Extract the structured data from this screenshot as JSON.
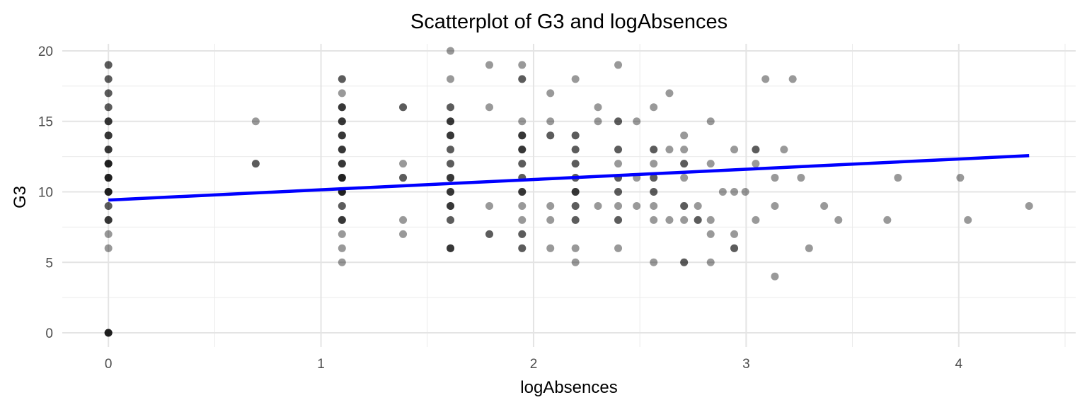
{
  "chart_data": {
    "type": "scatter",
    "title": "Scatterplot of G3 and logAbsences",
    "xlabel": "logAbsences",
    "ylabel": "G3",
    "xlim": [
      -0.217,
      4.55
    ],
    "ylim": [
      -1,
      20.5
    ],
    "x_ticks": [
      0,
      1,
      2,
      3,
      4
    ],
    "y_ticks": [
      0,
      5,
      10,
      15,
      20
    ],
    "x_tick_labels": [
      "0",
      "1",
      "2",
      "3",
      "4"
    ],
    "y_tick_labels": [
      "0",
      "5",
      "10",
      "15",
      "20"
    ],
    "grid": true,
    "point_color": "#000000",
    "point_opacity": 0.4,
    "series": [
      {
        "points": [
          [
            0,
            0
          ],
          [
            0,
            0
          ],
          [
            0,
            0
          ],
          [
            0,
            0
          ],
          [
            0,
            6
          ],
          [
            0,
            7
          ],
          [
            0,
            8
          ],
          [
            0,
            8
          ],
          [
            0,
            8
          ],
          [
            0,
            9
          ],
          [
            0,
            9
          ],
          [
            0,
            10
          ],
          [
            0,
            10
          ],
          [
            0,
            10
          ],
          [
            0,
            10
          ],
          [
            0,
            11
          ],
          [
            0,
            11
          ],
          [
            0,
            11
          ],
          [
            0,
            11
          ],
          [
            0,
            12
          ],
          [
            0,
            12
          ],
          [
            0,
            12
          ],
          [
            0,
            12
          ],
          [
            0,
            13
          ],
          [
            0,
            13
          ],
          [
            0,
            13
          ],
          [
            0,
            14
          ],
          [
            0,
            14
          ],
          [
            0,
            14
          ],
          [
            0,
            15
          ],
          [
            0,
            15
          ],
          [
            0,
            15
          ],
          [
            0,
            16
          ],
          [
            0,
            16
          ],
          [
            0,
            17
          ],
          [
            0,
            17
          ],
          [
            0,
            18
          ],
          [
            0,
            18
          ],
          [
            0,
            19
          ],
          [
            0,
            19
          ],
          [
            0.693,
            12
          ],
          [
            0.693,
            12
          ],
          [
            0.693,
            15
          ],
          [
            1.099,
            5
          ],
          [
            1.099,
            6
          ],
          [
            1.099,
            7
          ],
          [
            1.099,
            8
          ],
          [
            1.099,
            8
          ],
          [
            1.099,
            8
          ],
          [
            1.099,
            9
          ],
          [
            1.099,
            9
          ],
          [
            1.099,
            10
          ],
          [
            1.099,
            10
          ],
          [
            1.099,
            10
          ],
          [
            1.099,
            10
          ],
          [
            1.099,
            11
          ],
          [
            1.099,
            11
          ],
          [
            1.099,
            11
          ],
          [
            1.099,
            11
          ],
          [
            1.099,
            12
          ],
          [
            1.099,
            12
          ],
          [
            1.099,
            12
          ],
          [
            1.099,
            13
          ],
          [
            1.099,
            13
          ],
          [
            1.099,
            13
          ],
          [
            1.099,
            14
          ],
          [
            1.099,
            14
          ],
          [
            1.099,
            14
          ],
          [
            1.099,
            15
          ],
          [
            1.099,
            15
          ],
          [
            1.099,
            15
          ],
          [
            1.099,
            16
          ],
          [
            1.099,
            16
          ],
          [
            1.099,
            16
          ],
          [
            1.099,
            17
          ],
          [
            1.099,
            18
          ],
          [
            1.099,
            18
          ],
          [
            1.386,
            7
          ],
          [
            1.386,
            8
          ],
          [
            1.386,
            11
          ],
          [
            1.386,
            11
          ],
          [
            1.386,
            12
          ],
          [
            1.386,
            16
          ],
          [
            1.386,
            16
          ],
          [
            1.609,
            6
          ],
          [
            1.609,
            6
          ],
          [
            1.609,
            6
          ],
          [
            1.609,
            8
          ],
          [
            1.609,
            8
          ],
          [
            1.609,
            9
          ],
          [
            1.609,
            9
          ],
          [
            1.609,
            9
          ],
          [
            1.609,
            10
          ],
          [
            1.609,
            10
          ],
          [
            1.609,
            10
          ],
          [
            1.609,
            11
          ],
          [
            1.609,
            11
          ],
          [
            1.609,
            11
          ],
          [
            1.609,
            12
          ],
          [
            1.609,
            12
          ],
          [
            1.609,
            13
          ],
          [
            1.609,
            13
          ],
          [
            1.609,
            14
          ],
          [
            1.609,
            14
          ],
          [
            1.609,
            14
          ],
          [
            1.609,
            15
          ],
          [
            1.609,
            15
          ],
          [
            1.609,
            15
          ],
          [
            1.609,
            16
          ],
          [
            1.609,
            16
          ],
          [
            1.609,
            18
          ],
          [
            1.609,
            20
          ],
          [
            1.792,
            7
          ],
          [
            1.792,
            7
          ],
          [
            1.792,
            9
          ],
          [
            1.792,
            16
          ],
          [
            1.792,
            19
          ],
          [
            1.946,
            6
          ],
          [
            1.946,
            6
          ],
          [
            1.946,
            7
          ],
          [
            1.946,
            7
          ],
          [
            1.946,
            8
          ],
          [
            1.946,
            9
          ],
          [
            1.946,
            10
          ],
          [
            1.946,
            10
          ],
          [
            1.946,
            10
          ],
          [
            1.946,
            11
          ],
          [
            1.946,
            11
          ],
          [
            1.946,
            12
          ],
          [
            1.946,
            12
          ],
          [
            1.946,
            13
          ],
          [
            1.946,
            13
          ],
          [
            1.946,
            13
          ],
          [
            1.946,
            14
          ],
          [
            1.946,
            14
          ],
          [
            1.946,
            14
          ],
          [
            1.946,
            15
          ],
          [
            1.946,
            18
          ],
          [
            1.946,
            18
          ],
          [
            1.946,
            19
          ],
          [
            2.079,
            6
          ],
          [
            2.079,
            8
          ],
          [
            2.079,
            9
          ],
          [
            2.079,
            14
          ],
          [
            2.079,
            14
          ],
          [
            2.079,
            15
          ],
          [
            2.079,
            17
          ],
          [
            2.197,
            5
          ],
          [
            2.197,
            6
          ],
          [
            2.197,
            8
          ],
          [
            2.197,
            8
          ],
          [
            2.197,
            9
          ],
          [
            2.197,
            9
          ],
          [
            2.197,
            10
          ],
          [
            2.197,
            10
          ],
          [
            2.197,
            10
          ],
          [
            2.197,
            11
          ],
          [
            2.197,
            11
          ],
          [
            2.197,
            12
          ],
          [
            2.197,
            12
          ],
          [
            2.197,
            13
          ],
          [
            2.197,
            13
          ],
          [
            2.197,
            14
          ],
          [
            2.197,
            14
          ],
          [
            2.197,
            18
          ],
          [
            2.303,
            9
          ],
          [
            2.303,
            15
          ],
          [
            2.303,
            16
          ],
          [
            2.398,
            6
          ],
          [
            2.398,
            8
          ],
          [
            2.398,
            8
          ],
          [
            2.398,
            9
          ],
          [
            2.398,
            10
          ],
          [
            2.398,
            10
          ],
          [
            2.398,
            11
          ],
          [
            2.398,
            11
          ],
          [
            2.398,
            12
          ],
          [
            2.398,
            13
          ],
          [
            2.398,
            13
          ],
          [
            2.398,
            15
          ],
          [
            2.398,
            15
          ],
          [
            2.398,
            19
          ],
          [
            2.485,
            9
          ],
          [
            2.485,
            11
          ],
          [
            2.485,
            15
          ],
          [
            2.565,
            5
          ],
          [
            2.565,
            8
          ],
          [
            2.565,
            9
          ],
          [
            2.565,
            10
          ],
          [
            2.565,
            10
          ],
          [
            2.565,
            11
          ],
          [
            2.565,
            11
          ],
          [
            2.565,
            12
          ],
          [
            2.565,
            13
          ],
          [
            2.565,
            13
          ],
          [
            2.565,
            16
          ],
          [
            2.639,
            8
          ],
          [
            2.639,
            13
          ],
          [
            2.639,
            17
          ],
          [
            2.708,
            5
          ],
          [
            2.708,
            5
          ],
          [
            2.708,
            8
          ],
          [
            2.708,
            9
          ],
          [
            2.708,
            9
          ],
          [
            2.708,
            11
          ],
          [
            2.708,
            12
          ],
          [
            2.708,
            12
          ],
          [
            2.708,
            13
          ],
          [
            2.708,
            14
          ],
          [
            2.773,
            8
          ],
          [
            2.773,
            8
          ],
          [
            2.773,
            9
          ],
          [
            2.833,
            5
          ],
          [
            2.833,
            7
          ],
          [
            2.833,
            8
          ],
          [
            2.833,
            12
          ],
          [
            2.833,
            15
          ],
          [
            2.89,
            10
          ],
          [
            2.944,
            6
          ],
          [
            2.944,
            6
          ],
          [
            2.944,
            7
          ],
          [
            2.944,
            10
          ],
          [
            2.944,
            13
          ],
          [
            2.996,
            10
          ],
          [
            3.045,
            8
          ],
          [
            3.045,
            12
          ],
          [
            3.045,
            13
          ],
          [
            3.045,
            13
          ],
          [
            3.091,
            18
          ],
          [
            3.135,
            4
          ],
          [
            3.135,
            9
          ],
          [
            3.135,
            11
          ],
          [
            3.178,
            13
          ],
          [
            3.219,
            18
          ],
          [
            3.258,
            11
          ],
          [
            3.296,
            6
          ],
          [
            3.367,
            9
          ],
          [
            3.434,
            8
          ],
          [
            3.664,
            8
          ],
          [
            3.714,
            11
          ],
          [
            4.007,
            11
          ],
          [
            4.043,
            8
          ],
          [
            4.331,
            9
          ]
        ]
      }
    ],
    "regression": {
      "color": "#0000ff",
      "x": [
        0,
        4.331
      ],
      "y": [
        9.42,
        12.57
      ]
    }
  }
}
